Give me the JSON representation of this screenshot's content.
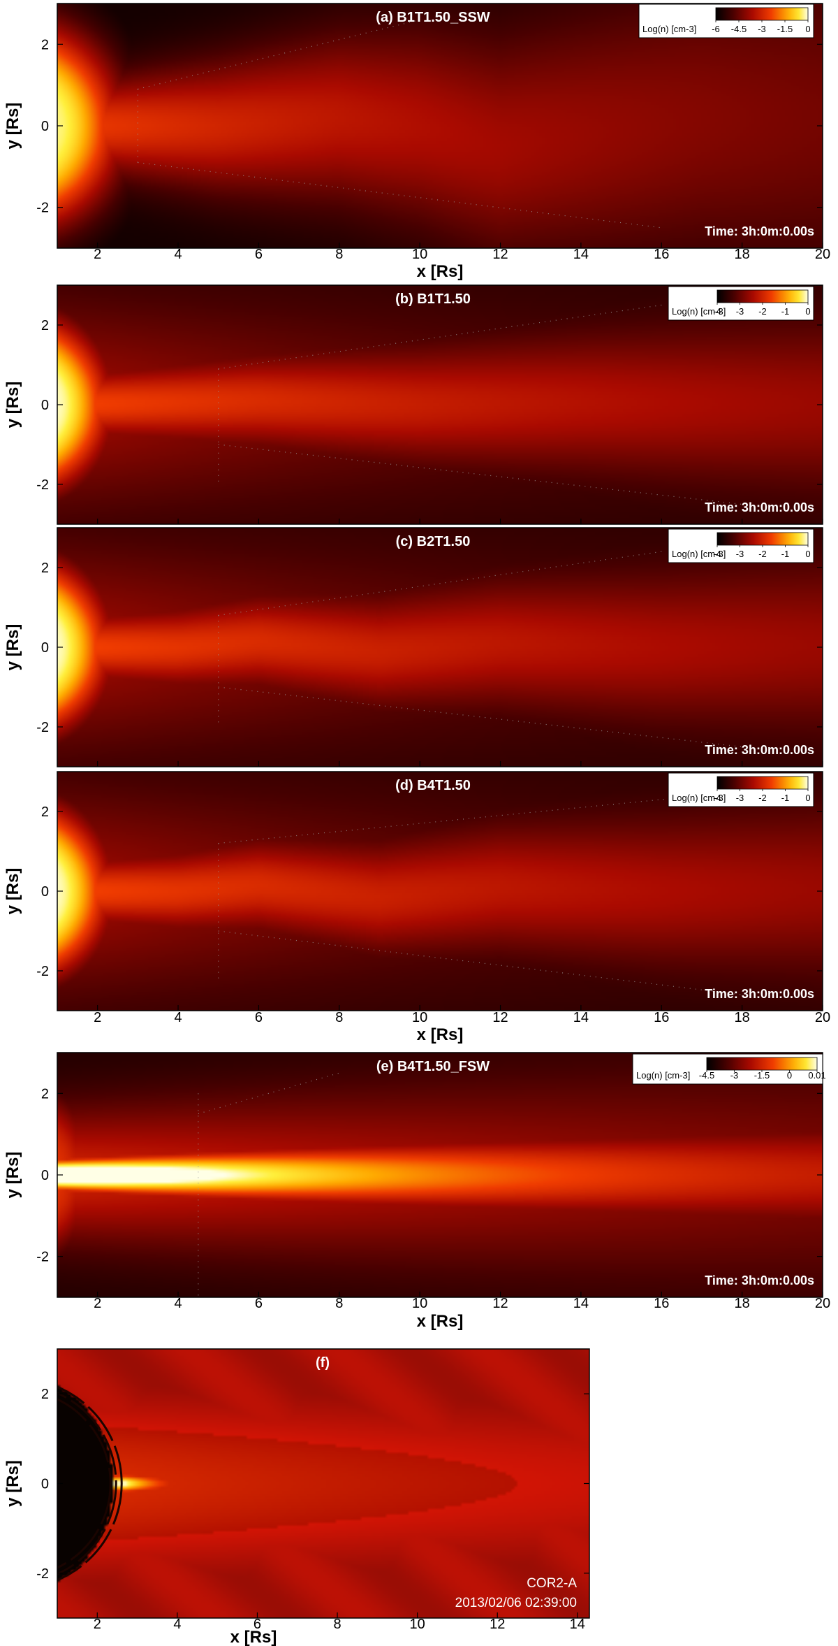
{
  "figure": {
    "xlabel": "x [Rs]",
    "ylabel": "y [Rs]",
    "time_prefix": "Time: ",
    "colorbar_label": "Log(n) [cm-3]"
  },
  "chart_data": [
    {
      "type": "heatmap",
      "title": "(a) B1T1.50_SSW",
      "xlabel": "x [Rs]",
      "ylabel": "y [Rs]",
      "xlim": [
        1,
        20
      ],
      "ylim": [
        -3,
        3
      ],
      "xticks": [
        2,
        4,
        6,
        8,
        10,
        12,
        14,
        16,
        18,
        20
      ],
      "yticks": [
        -2,
        0,
        2
      ],
      "show_xticklabels": true,
      "show_xlabel": true,
      "time": "3h:0m:0.00s",
      "colorbar": {
        "label": "Log(n) [cm-3]",
        "ticks": [
          "-6",
          "-4.5",
          "-3",
          "-1.5",
          "0"
        ],
        "range": [
          -6,
          0
        ],
        "scheme": "heat"
      },
      "density_model": {
        "variant": "ssw",
        "streamer_center_y": [
          [
            1,
            0
          ],
          [
            5,
            0
          ],
          [
            8,
            0.2
          ],
          [
            10,
            0.0
          ],
          [
            12,
            -0.5
          ],
          [
            14,
            -0.25
          ],
          [
            17,
            0.15
          ],
          [
            20,
            0.2
          ]
        ]
      },
      "boundary_lines": [
        {
          "x1": 3,
          "y1": 0.9,
          "x2": 10,
          "y2": 2.6
        },
        {
          "x1": 3,
          "y1": -0.9,
          "x2": 16,
          "y2": -2.5
        },
        {
          "x1": 3,
          "y1": 0.9,
          "x2": 3,
          "y2": -0.9
        }
      ]
    },
    {
      "type": "heatmap",
      "title": "(b) B1T1.50",
      "xlabel": "",
      "ylabel": "y [Rs]",
      "xlim": [
        1,
        20
      ],
      "ylim": [
        -3,
        3
      ],
      "xticks": [
        2,
        4,
        6,
        8,
        10,
        12,
        14,
        16,
        18,
        20
      ],
      "yticks": [
        -2,
        0,
        2
      ],
      "show_xticklabels": false,
      "show_xlabel": false,
      "time": "3h:0m:0.00s",
      "colorbar": {
        "label": "Log(n) [cm-3]",
        "ticks": [
          "-4",
          "-3",
          "-2",
          "-1",
          "0"
        ],
        "range": [
          -4,
          0
        ],
        "scheme": "heat"
      },
      "density_model": {
        "variant": "b1",
        "streamer_center_y": [
          [
            1,
            0
          ],
          [
            6,
            0.1
          ],
          [
            10,
            0.0
          ],
          [
            14,
            0.05
          ],
          [
            20,
            0.0
          ]
        ]
      },
      "boundary_lines": [
        {
          "x1": 5,
          "y1": 0.9,
          "x2": 16,
          "y2": 2.5
        },
        {
          "x1": 5,
          "y1": -1.0,
          "x2": 18,
          "y2": -2.5
        },
        {
          "x1": 5,
          "y1": 0.9,
          "x2": 5,
          "y2": -2.0
        }
      ]
    },
    {
      "type": "heatmap",
      "title": "(c) B2T1.50",
      "xlabel": "",
      "ylabel": "y [Rs]",
      "xlim": [
        1,
        20
      ],
      "ylim": [
        -3,
        3
      ],
      "xticks": [
        2,
        4,
        6,
        8,
        10,
        12,
        14,
        16,
        18,
        20
      ],
      "yticks": [
        -2,
        0,
        2
      ],
      "show_xticklabels": false,
      "show_xlabel": false,
      "time": "3h:0m:0.00s",
      "colorbar": {
        "label": "Log(n) [cm-3]",
        "ticks": [
          "-4",
          "-3",
          "-2",
          "-1",
          "0"
        ],
        "range": [
          -4,
          0
        ],
        "scheme": "heat"
      },
      "density_model": {
        "variant": "b2",
        "streamer_center_y": [
          [
            1,
            0
          ],
          [
            4,
            0
          ],
          [
            6,
            0.15
          ],
          [
            9,
            -0.1
          ],
          [
            12,
            0.1
          ],
          [
            16,
            0.0
          ],
          [
            20,
            0.05
          ]
        ]
      },
      "boundary_lines": [
        {
          "x1": 5,
          "y1": 0.8,
          "x2": 16,
          "y2": 2.4
        },
        {
          "x1": 5,
          "y1": -1.0,
          "x2": 18,
          "y2": -2.5
        },
        {
          "x1": 5,
          "y1": 0.8,
          "x2": 5,
          "y2": -2.0
        }
      ]
    },
    {
      "type": "heatmap",
      "title": "(d) B4T1.50",
      "xlabel": "x [Rs]",
      "ylabel": "y [Rs]",
      "xlim": [
        1,
        20
      ],
      "ylim": [
        -3,
        3
      ],
      "xticks": [
        2,
        4,
        6,
        8,
        10,
        12,
        14,
        16,
        18,
        20
      ],
      "yticks": [
        -2,
        0,
        2
      ],
      "show_xticklabels": true,
      "show_xlabel": true,
      "time": "3h:0m:0.00s",
      "colorbar": {
        "label": "Log(n) [cm-3]",
        "ticks": [
          "-4",
          "-3",
          "-2",
          "-1",
          "0"
        ],
        "range": [
          -4,
          0
        ],
        "scheme": "heat"
      },
      "density_model": {
        "variant": "b4",
        "streamer_center_y": [
          [
            1,
            0
          ],
          [
            4,
            0
          ],
          [
            6,
            0.15
          ],
          [
            9,
            -0.15
          ],
          [
            12,
            0.1
          ],
          [
            16,
            0.0
          ],
          [
            20,
            0.05
          ]
        ]
      },
      "boundary_lines": [
        {
          "x1": 5,
          "y1": 1.2,
          "x2": 17,
          "y2": 2.4
        },
        {
          "x1": 5,
          "y1": -1.0,
          "x2": 18,
          "y2": -2.6
        },
        {
          "x1": 5,
          "y1": 1.2,
          "x2": 5,
          "y2": -2.2
        }
      ]
    },
    {
      "type": "heatmap",
      "title": "(e) B4T1.50_FSW",
      "xlabel": "x [Rs]",
      "ylabel": "y [Rs]",
      "xlim": [
        1,
        20
      ],
      "ylim": [
        -3,
        3
      ],
      "xticks": [
        2,
        4,
        6,
        8,
        10,
        12,
        14,
        16,
        18,
        20
      ],
      "yticks": [
        -2,
        0,
        2
      ],
      "show_xticklabels": true,
      "show_xlabel": true,
      "time": "3h:0m:0.00s",
      "colorbar": {
        "label": "Log(n) [cm-3]",
        "ticks": [
          "-4.5",
          "-3",
          "-1.5",
          "0",
          "0.01"
        ],
        "range": [
          -4.5,
          0.01
        ],
        "scheme": "heat"
      },
      "density_model": {
        "variant": "fsw",
        "streamer_center_y": [
          [
            1,
            0
          ],
          [
            10,
            0
          ],
          [
            20,
            0
          ]
        ]
      },
      "boundary_lines": [
        {
          "x1": 4.5,
          "y1": 1.5,
          "x2": 8,
          "y2": 2.5
        },
        {
          "x1": 4.5,
          "y1": 2.0,
          "x2": 4.5,
          "y2": -3.0
        }
      ]
    },
    {
      "type": "heatmap",
      "title": "(f)",
      "xlabel": "x [Rs]",
      "ylabel": "y [Rs]",
      "xlim": [
        1,
        14.3
      ],
      "ylim": [
        -3,
        3
      ],
      "xticks": [
        2,
        4,
        6,
        8,
        10,
        12,
        14
      ],
      "yticks": [
        -2,
        0,
        2
      ],
      "show_xticklabels": true,
      "show_xlabel": true,
      "instrument": "COR2-A",
      "datetime": "2013/02/06 02:39:00",
      "occulter_radius_rs": 2.4,
      "density_model": {
        "variant": "obs"
      }
    }
  ]
}
